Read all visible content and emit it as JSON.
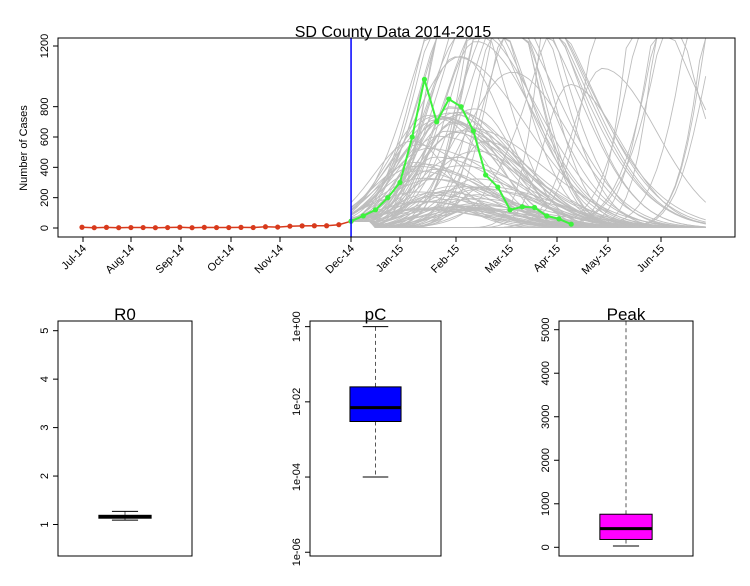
{
  "colors": {
    "projection": "#bdbdbd",
    "observed_line": "#3df23d",
    "observed_points": "#3df23d",
    "early_points": "#d83a1c",
    "early_line": "#d83a1c",
    "divider": "#0000ff",
    "box_R0": "#ffffff",
    "box_pC": "#0000ff",
    "box_Peak": "#ff00ff"
  },
  "chart_data": [
    {
      "type": "line",
      "title": "SD County Data 2014-2015",
      "ylabel": "Number of Cases",
      "xlabel": "",
      "x_tick_labels": [
        "Jul-14",
        "Aug-14",
        "Sep-14",
        "Oct-14",
        "Nov-14",
        "Dec-14",
        "Jan-15",
        "Feb-15",
        "Mar-15",
        "Apr-15",
        "May-15",
        "Jun-15"
      ],
      "y_ticks": [
        0,
        200,
        400,
        600,
        800,
        1200
      ],
      "ylim": [
        0,
        1240
      ],
      "divider_week": 22,
      "series": [
        {
          "role": "early",
          "x_week": [
            0,
            1,
            2,
            3,
            4,
            5,
            6,
            7,
            8,
            9,
            10,
            11,
            12,
            13,
            14,
            15,
            16,
            17,
            18,
            19,
            20,
            21,
            22
          ],
          "values": [
            5,
            2,
            4,
            2,
            3,
            3,
            2,
            3,
            5,
            2,
            4,
            3,
            3,
            4,
            3,
            8,
            6,
            12,
            14,
            15,
            15,
            22,
            45
          ]
        },
        {
          "role": "observed",
          "x_week": [
            22,
            23,
            24,
            25,
            26,
            27,
            28,
            29,
            30,
            31,
            32,
            33,
            34,
            35,
            36,
            37,
            38,
            39,
            40
          ],
          "values": [
            45,
            80,
            120,
            200,
            300,
            600,
            980,
            700,
            850,
            800,
            640,
            350,
            270,
            120,
            140,
            135,
            80,
            60,
            25
          ]
        }
      ],
      "projections": {
        "count": 110,
        "seed": 20150101,
        "start_week": 22,
        "end_week": 51,
        "start_value": 45
      }
    },
    {
      "type": "box",
      "title": "R0",
      "scale": "linear",
      "y_ticks": [
        1,
        2,
        3,
        4,
        5
      ],
      "ylim": [
        0.35,
        5.2
      ],
      "whisker_low": 1.09,
      "q1": 1.13,
      "median": 1.16,
      "q3": 1.19,
      "whisker_high": 1.27,
      "fill_key": "box_R0"
    },
    {
      "type": "box",
      "title": "pC",
      "scale": "log10",
      "y_ticks": [
        "1e-06",
        "1e-04",
        "1e-02",
        "1e+00"
      ],
      "ylim_log10": [
        -6.1,
        0.15
      ],
      "whisker_low": "1e-04",
      "q1": "3e-03",
      "median": "7e-03",
      "q3": "2.5e-02",
      "whisker_high": "1e+00",
      "fill_key": "box_pC"
    },
    {
      "type": "box",
      "title": "Peak",
      "scale": "linear",
      "y_ticks": [
        0,
        1000,
        2000,
        3000,
        4000,
        5000
      ],
      "ylim": [
        -200,
        5200
      ],
      "whisker_low": 30,
      "q1": 180,
      "median": 430,
      "q3": 760,
      "whisker_high": 5200,
      "fill_key": "box_Peak"
    }
  ]
}
